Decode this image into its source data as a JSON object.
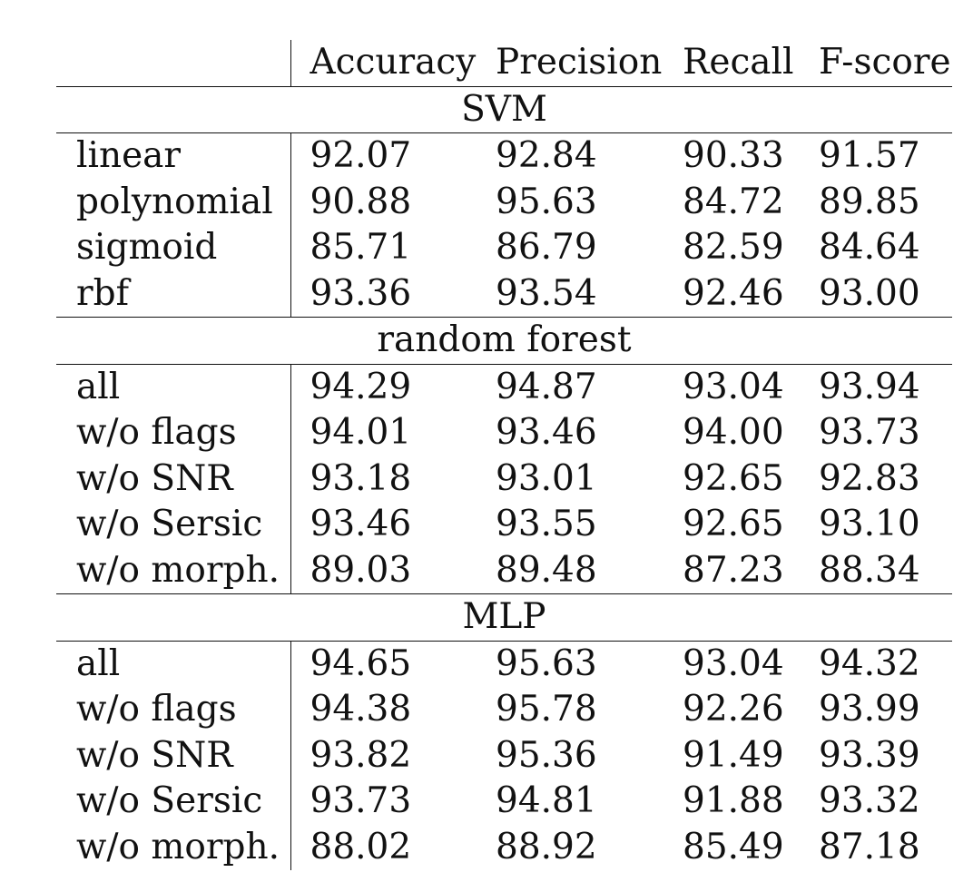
{
  "table": {
    "headers": [
      "",
      "Accuracy",
      "Precision",
      "Recall",
      "F-score"
    ],
    "sections": [
      {
        "title": "SVM",
        "rows": [
          {
            "method": "linear",
            "values": [
              "92.07",
              "92.84",
              "90.33",
              "91.57"
            ]
          },
          {
            "method": "polynomial",
            "values": [
              "90.88",
              "95.63",
              "84.72",
              "89.85"
            ]
          },
          {
            "method": "sigmoid",
            "values": [
              "85.71",
              "86.79",
              "82.59",
              "84.64"
            ]
          },
          {
            "method": "rbf",
            "values": [
              "93.36",
              "93.54",
              "92.46",
              "93.00"
            ]
          }
        ]
      },
      {
        "title": "random forest",
        "rows": [
          {
            "method": "all",
            "values": [
              "94.29",
              "94.87",
              "93.04",
              "93.94"
            ]
          },
          {
            "method": "w/o flags",
            "values": [
              "94.01",
              "93.46",
              "94.00",
              "93.73"
            ]
          },
          {
            "method": "w/o SNR",
            "values": [
              "93.18",
              "93.01",
              "92.65",
              "92.83"
            ]
          },
          {
            "method": "w/o Sersic",
            "values": [
              "93.46",
              "93.55",
              "92.65",
              "93.10"
            ]
          },
          {
            "method": "w/o morph.",
            "values": [
              "89.03",
              "89.48",
              "87.23",
              "88.34"
            ]
          }
        ]
      },
      {
        "title": "MLP",
        "rows": [
          {
            "method": "all",
            "values": [
              "94.65",
              "95.63",
              "93.04",
              "94.32"
            ]
          },
          {
            "method": "w/o flags",
            "values": [
              "94.38",
              "95.78",
              "92.26",
              "93.99"
            ]
          },
          {
            "method": "w/o SNR",
            "values": [
              "93.82",
              "95.36",
              "91.49",
              "93.39"
            ]
          },
          {
            "method": "w/o Sersic",
            "values": [
              "93.73",
              "94.81",
              "91.88",
              "93.32"
            ]
          },
          {
            "method": "w/o morph.",
            "values": [
              "88.02",
              "88.92",
              "85.49",
              "87.18"
            ]
          }
        ]
      }
    ]
  }
}
